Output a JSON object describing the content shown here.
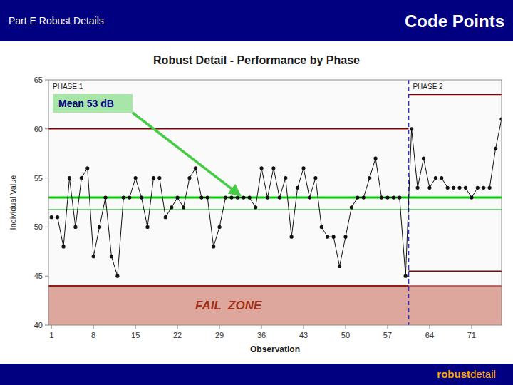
{
  "chart_data": {
    "type": "line",
    "title": "Robust Detail - Performance by Phase",
    "header": {
      "left": "Part E Robust Details",
      "right": "Code Points",
      "color": "#000080"
    },
    "footer": {
      "bold": "robust",
      "normal": "detail",
      "color": "#000080"
    },
    "xlabel": "Observation",
    "ylabel": "Individual Value",
    "x": [
      1,
      2,
      3,
      4,
      5,
      6,
      7,
      8,
      9,
      10,
      11,
      12,
      13,
      14,
      15,
      16,
      17,
      18,
      19,
      20,
      21,
      22,
      23,
      24,
      25,
      26,
      27,
      28,
      29,
      30,
      31,
      32,
      33,
      34,
      35,
      36,
      37,
      38,
      39,
      40,
      41,
      42,
      43,
      44,
      45,
      46,
      47,
      48,
      49,
      50,
      51,
      52,
      53,
      54,
      55,
      56,
      57,
      58,
      59,
      60,
      61,
      62,
      63,
      64,
      65,
      66,
      67,
      68,
      69,
      70,
      71,
      72,
      73,
      74,
      75,
      76
    ],
    "values": [
      51,
      51,
      48,
      55,
      50,
      55,
      56,
      47,
      50,
      53,
      47,
      45,
      53,
      53,
      55,
      53,
      50,
      55,
      55,
      51,
      52,
      53,
      52,
      55,
      56,
      53,
      53,
      48,
      50,
      53,
      53,
      53,
      53,
      53,
      52,
      56,
      53,
      56,
      53,
      55,
      49,
      54,
      56,
      53,
      55,
      50,
      49,
      49,
      46,
      49,
      52,
      53,
      53,
      55,
      57,
      53,
      53,
      53,
      53,
      45,
      60,
      54,
      57,
      54,
      55,
      55,
      54,
      54,
      54,
      54,
      53,
      54,
      54,
      54,
      58,
      61
    ],
    "color": "#111111",
    "marker": "circle",
    "line_style": "solid",
    "xlim": [
      0.5,
      76
    ],
    "ylim": [
      40,
      65
    ],
    "xticks": [
      1,
      8,
      15,
      22,
      29,
      36,
      43,
      50,
      57,
      64,
      71
    ],
    "yticks": [
      40,
      45,
      50,
      55,
      60,
      65
    ],
    "grid": false,
    "phase_split": {
      "value": 60.5,
      "color": "#3333cc"
    },
    "phase_labels": [
      "PHASE 1",
      "PHASE 2"
    ],
    "control_limits": [
      {
        "ucl": 60.0,
        "lcl": 44.0,
        "color": "#880000"
      },
      {
        "ucl": 63.5,
        "lcl": 45.5,
        "color": "#880000"
      }
    ],
    "mean_lines": [
      {
        "value": 53.0,
        "color": "#00cc00"
      },
      {
        "value": 51.8,
        "color": "#66dd66"
      }
    ],
    "fail_zone": {
      "lower": 40.0,
      "upper": 44.0,
      "label": "FAIL  ZONE",
      "color": "#cc7060"
    },
    "mean_annotation": {
      "label": "Mean 53 dB",
      "color": "#44cc44"
    }
  }
}
